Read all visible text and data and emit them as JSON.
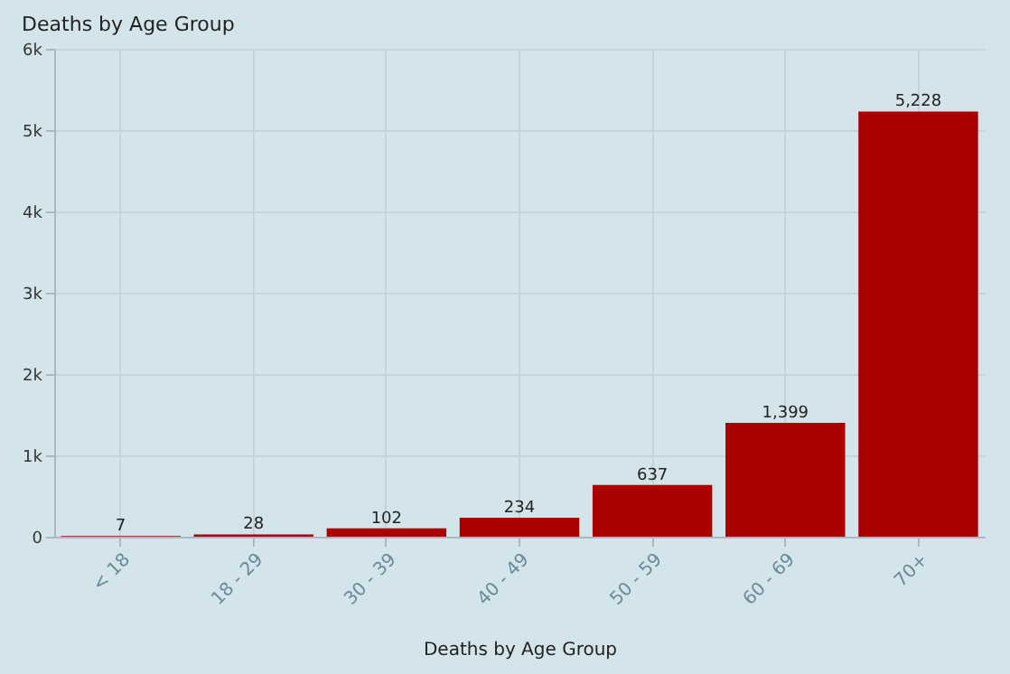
{
  "chart_data": {
    "type": "bar",
    "title": "Deaths by Age Group",
    "categories": [
      "< 18",
      "18 - 29",
      "30 - 39",
      "40 - 49",
      "50 - 59",
      "60 - 69",
      "70+"
    ],
    "values": [
      7,
      28,
      102,
      234,
      637,
      1399,
      5228
    ],
    "value_labels": [
      "7",
      "28",
      "102",
      "234",
      "637",
      "1,399",
      "5,228"
    ],
    "color": "#aa0000",
    "ylim": [
      0,
      6000
    ],
    "yticks": [
      0,
      {
        "value": 1000,
        "label": "1k"
      },
      {
        "value": 2000,
        "label": "2k"
      },
      {
        "value": 3000,
        "label": "3k"
      },
      {
        "value": 4000,
        "label": "4k"
      },
      {
        "value": 5000,
        "label": "5k"
      },
      {
        "value": 6000,
        "label": "6k"
      }
    ],
    "grid": true,
    "annotations": [
      "Deaths by Age Group"
    ]
  }
}
